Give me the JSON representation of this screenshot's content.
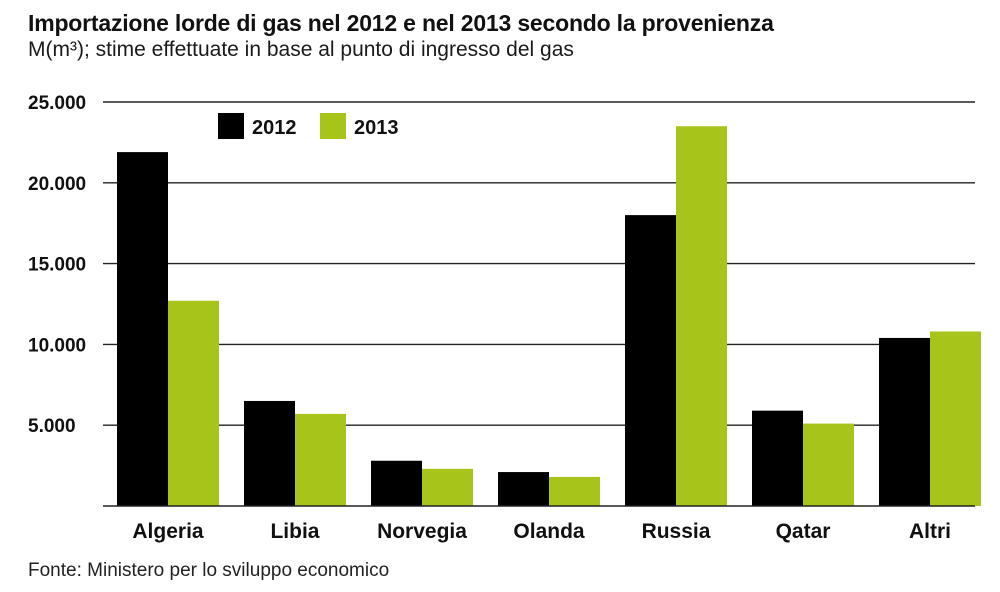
{
  "title": "Importazione lorde di gas nel 2012 e nel 2013 secondo la provenienza",
  "subtitle": "M(m³); stime effettuate in base al punto di ingresso del gas",
  "source": "Fonte: Ministero per lo sviluppo economico",
  "colors": {
    "series_2012": "#000000",
    "series_2013": "#a6c41a",
    "gridline": "#222222"
  },
  "chart_data": {
    "type": "bar",
    "categories": [
      "Algeria",
      "Libia",
      "Norvegia",
      "Olanda",
      "Russia",
      "Qatar",
      "Altri"
    ],
    "series": [
      {
        "name": "2012",
        "values": [
          21900,
          6500,
          2800,
          2100,
          18000,
          5900,
          10400
        ]
      },
      {
        "name": "2013",
        "values": [
          12700,
          5700,
          2300,
          1800,
          23500,
          5100,
          10800
        ]
      }
    ],
    "yticks": [
      "25.000",
      "20.000",
      "15.000",
      "10.000",
      "5.000"
    ],
    "ytick_values": [
      25000,
      20000,
      15000,
      10000,
      5000
    ],
    "ylim": [
      0,
      25000
    ],
    "grid": true,
    "legend_position": "top-left"
  }
}
